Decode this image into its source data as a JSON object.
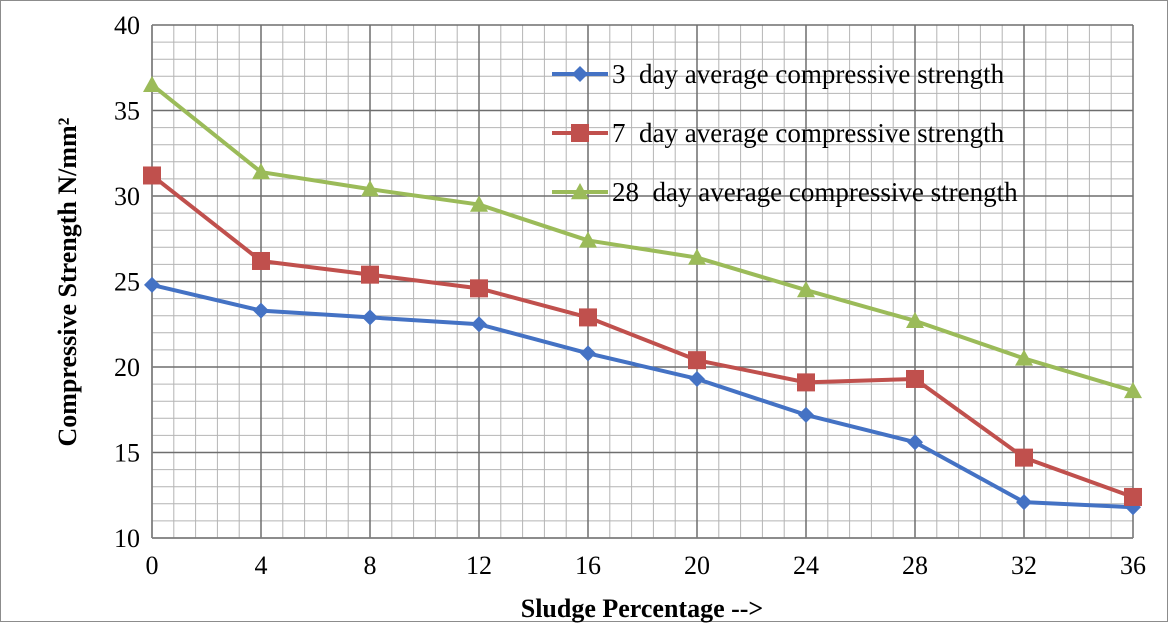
{
  "chart_data": {
    "type": "line",
    "title": "",
    "xlabel": "Sludge Percentage -->",
    "ylabel": "Compressive Strength N/mm²",
    "x": [
      0,
      4,
      8,
      12,
      16,
      20,
      24,
      28,
      32,
      36
    ],
    "xlim": [
      0,
      36
    ],
    "ylim": [
      10,
      40
    ],
    "xticks": [
      0,
      4,
      8,
      12,
      16,
      20,
      24,
      28,
      32,
      36
    ],
    "yticks": [
      10,
      15,
      20,
      25,
      30,
      35,
      40
    ],
    "grid": true,
    "legend_position": "top-right",
    "series": [
      {
        "name": "3  day average compressive strength",
        "color": "#4472C4",
        "marker": "diamond",
        "values": [
          24.8,
          23.3,
          22.9,
          22.5,
          20.8,
          19.3,
          17.2,
          15.6,
          12.1,
          11.8
        ]
      },
      {
        "name": "7  day average compressive strength",
        "color": "#C0504D",
        "marker": "square",
        "values": [
          31.2,
          26.2,
          25.4,
          24.6,
          22.9,
          20.4,
          19.1,
          19.3,
          14.7,
          12.4
        ]
      },
      {
        "name": "28  day average compressive strength",
        "color": "#9BBB59",
        "marker": "triangle",
        "values": [
          36.5,
          31.4,
          30.4,
          29.5,
          27.4,
          26.4,
          24.5,
          22.7,
          20.5,
          18.6
        ]
      }
    ]
  }
}
